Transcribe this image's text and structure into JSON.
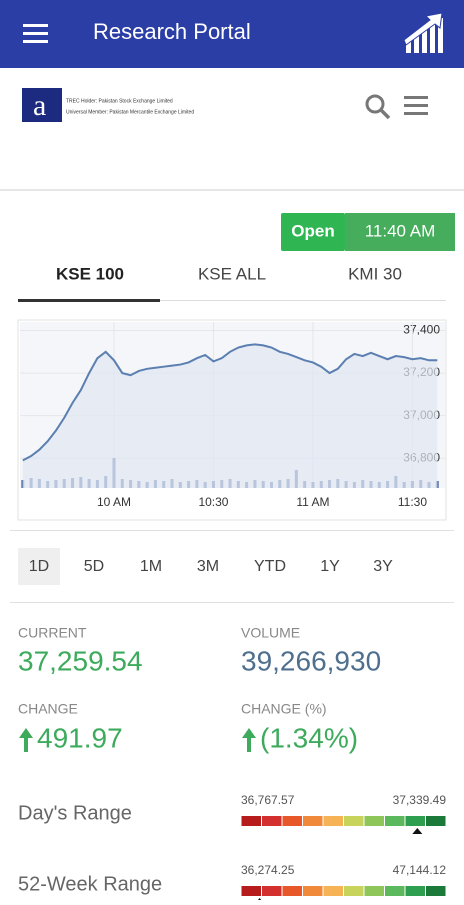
{
  "header": {
    "title": "Research Portal"
  },
  "logo": {
    "lines": [
      "TREC Holder: Pakistan Stock Exchange Limited",
      "Universal Member: Pakistan Mercantile Exchange Limited"
    ]
  },
  "market_status": {
    "state": "Open",
    "time": "11:40 AM"
  },
  "tabs": [
    "KSE 100",
    "KSE ALL",
    "KMI 30"
  ],
  "chart_data": {
    "type": "line",
    "color": "#5a7fb0",
    "categories": [
      null,
      null,
      null,
      null,
      null,
      null,
      null,
      null,
      null,
      null,
      null,
      "10 AM",
      null,
      null,
      null,
      null,
      null,
      null,
      null,
      null,
      null,
      null,
      null,
      "10:30",
      null,
      null,
      null,
      null,
      null,
      null,
      null,
      null,
      null,
      null,
      null,
      "11 AM",
      null,
      null,
      null,
      null,
      null,
      null,
      null,
      null,
      null,
      null,
      null,
      "11:30",
      null,
      null,
      null
    ],
    "values": [
      36790,
      36810,
      36840,
      36880,
      36930,
      36990,
      37060,
      37120,
      37200,
      37270,
      37300,
      37260,
      37200,
      37190,
      37210,
      37220,
      37225,
      37230,
      37235,
      37240,
      37250,
      37270,
      37285,
      37255,
      37270,
      37300,
      37320,
      37330,
      37335,
      37330,
      37320,
      37300,
      37290,
      37275,
      37260,
      37250,
      37230,
      37200,
      37220,
      37265,
      37290,
      37280,
      37295,
      37280,
      37265,
      37280,
      37275,
      37265,
      37270,
      37260,
      37260
    ],
    "volume": [
      8,
      10,
      9,
      7,
      8,
      9,
      10,
      11,
      9,
      8,
      12,
      30,
      9,
      8,
      7,
      6,
      8,
      7,
      9,
      6,
      7,
      8,
      6,
      7,
      8,
      9,
      7,
      6,
      8,
      7,
      6,
      8,
      9,
      18,
      7,
      6,
      7,
      8,
      9,
      7,
      6,
      8,
      7,
      6,
      7,
      12,
      6,
      7,
      8,
      6,
      7
    ],
    "ylim": [
      36660,
      37440
    ],
    "yticks": [
      {
        "value": 36800,
        "label": "36,800"
      },
      {
        "value": 37000,
        "label": "37,000"
      },
      {
        "value": 37200,
        "label": "37,200"
      },
      {
        "value": 37400,
        "label": "37,400"
      }
    ]
  },
  "periods": [
    "1D",
    "5D",
    "1M",
    "3M",
    "YTD",
    "1Y",
    "3Y"
  ],
  "stats": {
    "current_label": "CURRENT",
    "current": {
      "value": 37259.54,
      "label": "37,259.54"
    },
    "volume_label": "VOLUME",
    "volume": "39,266,930",
    "change_label": "CHANGE",
    "change": "491.97",
    "change_pct_label": "CHANGE (%)",
    "change_pct": "(1.34%)"
  },
  "ranges": [
    {
      "label": "Day's Range",
      "low": {
        "value": 36767.57,
        "label": "36,767.57"
      },
      "high": {
        "value": 37339.49,
        "label": "37,339.49"
      }
    },
    {
      "label": "52-Week Range",
      "low": {
        "value": 36274.25,
        "label": "36,274.25"
      },
      "high": {
        "value": 47144.12,
        "label": "47,144.12"
      }
    }
  ]
}
